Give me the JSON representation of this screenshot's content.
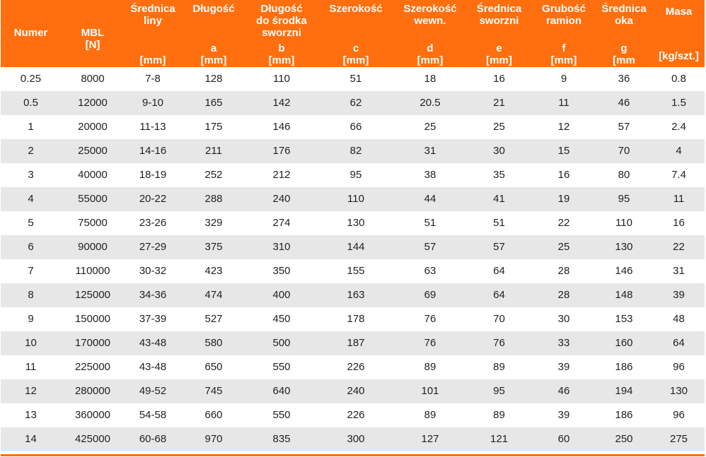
{
  "colors": {
    "header_bg": "#ff6f0f",
    "stripe": "#e7e7e7",
    "header_text": "#ffffff"
  },
  "columns": [
    {
      "top": "Numer",
      "symbol": "",
      "unit": ""
    },
    {
      "top": "MBL\n[N]",
      "symbol": "",
      "unit": ""
    },
    {
      "top": "Średnica\nliny",
      "symbol": "",
      "unit": "[mm]"
    },
    {
      "top": "Długość",
      "symbol": "a",
      "unit": "[mm]"
    },
    {
      "top": "Długość\ndo środka\nsworzni",
      "symbol": "b",
      "unit": "[mm]"
    },
    {
      "top": "Szerokość",
      "symbol": "c",
      "unit": "[mm]"
    },
    {
      "top": "Szerokość\nwewn.",
      "symbol": "d",
      "unit": "[mm]"
    },
    {
      "top": "Średnica\nsworzni",
      "symbol": "e",
      "unit": "[mm]"
    },
    {
      "top": "Grubość\nramion",
      "symbol": "f",
      "unit": "[mm]"
    },
    {
      "top": "Średnica\noka",
      "symbol": "g",
      "unit": "[mm"
    },
    {
      "top": "Masa",
      "symbol": "",
      "unit": "[kg/szt.]"
    }
  ],
  "rows": [
    [
      "0.25",
      "8000",
      "7-8",
      "128",
      "110",
      "51",
      "18",
      "16",
      "9",
      "36",
      "0.8"
    ],
    [
      "0.5",
      "12000",
      "9-10",
      "165",
      "142",
      "62",
      "20.5",
      "21",
      "11",
      "46",
      "1.5"
    ],
    [
      "1",
      "20000",
      "11-13",
      "175",
      "146",
      "66",
      "25",
      "25",
      "12",
      "57",
      "2.4"
    ],
    [
      "2",
      "25000",
      "14-16",
      "211",
      "176",
      "82",
      "31",
      "30",
      "15",
      "70",
      "4"
    ],
    [
      "3",
      "40000",
      "18-19",
      "252",
      "212",
      "95",
      "38",
      "35",
      "16",
      "80",
      "7.4"
    ],
    [
      "4",
      "55000",
      "20-22",
      "288",
      "240",
      "110",
      "44",
      "41",
      "19",
      "95",
      "11"
    ],
    [
      "5",
      "75000",
      "23-26",
      "329",
      "274",
      "130",
      "51",
      "51",
      "22",
      "110",
      "16"
    ],
    [
      "6",
      "90000",
      "27-29",
      "375",
      "310",
      "144",
      "57",
      "57",
      "25",
      "130",
      "22"
    ],
    [
      "7",
      "110000",
      "30-32",
      "423",
      "350",
      "155",
      "63",
      "64",
      "28",
      "146",
      "31"
    ],
    [
      "8",
      "125000",
      "34-36",
      "474",
      "400",
      "163",
      "69",
      "64",
      "28",
      "148",
      "39"
    ],
    [
      "9",
      "150000",
      "37-39",
      "527",
      "450",
      "178",
      "76",
      "70",
      "30",
      "153",
      "48"
    ],
    [
      "10",
      "170000",
      "43-48",
      "580",
      "500",
      "187",
      "76",
      "76",
      "33",
      "160",
      "64"
    ],
    [
      "11",
      "225000",
      "43-48",
      "650",
      "550",
      "226",
      "89",
      "89",
      "39",
      "186",
      "96"
    ],
    [
      "12",
      "280000",
      "49-52",
      "745",
      "640",
      "240",
      "101",
      "95",
      "46",
      "194",
      "130"
    ],
    [
      "13",
      "360000",
      "54-58",
      "660",
      "550",
      "226",
      "89",
      "89",
      "39",
      "186",
      "96"
    ],
    [
      "14",
      "425000",
      "60-68",
      "970",
      "835",
      "300",
      "127",
      "121",
      "60",
      "250",
      "275"
    ]
  ]
}
